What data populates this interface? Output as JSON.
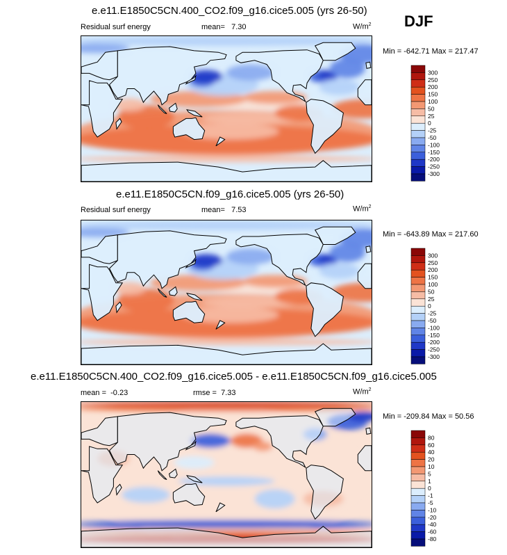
{
  "season": "DJF",
  "chart_data": [
    {
      "type": "heatmap",
      "title": "e.e11.E1850C5CN.400_CO2.f09_g16.cice5.005 (yrs 26-50)",
      "variable": "Residual surf energy",
      "mean_label": "mean=",
      "mean_value": "7.30",
      "units": "W/m",
      "units_exp": "2",
      "min_text": "Min = -642.71 Max = 217.47",
      "min": -642.71,
      "max": 217.47,
      "colorbar": {
        "levels": [
          "300",
          "250",
          "200",
          "150",
          "100",
          "50",
          "25",
          "0",
          "-25",
          "-50",
          "-100",
          "-150",
          "-200",
          "-250",
          "-300"
        ],
        "colors": [
          "#8a0707",
          "#b0160d",
          "#cf2e17",
          "#e3521f",
          "#ee7445",
          "#f39873",
          "#f6bca5",
          "#fbe3d6",
          "#dceefd",
          "#b4d1f8",
          "#89aaf0",
          "#6084e6",
          "#3b5fdb",
          "#1f38c7",
          "#0a1aa8",
          "#060e7a"
        ]
      }
    },
    {
      "type": "heatmap",
      "title": "e.e11.E1850C5CN.f09_g16.cice5.005 (yrs 26-50)",
      "variable": "Residual surf energy",
      "mean_label": "mean=",
      "mean_value": "7.53",
      "units": "W/m",
      "units_exp": "2",
      "min_text": "Min = -643.89 Max = 217.60",
      "min": -643.89,
      "max": 217.6,
      "colorbar": {
        "levels": [
          "300",
          "250",
          "200",
          "150",
          "100",
          "50",
          "25",
          "0",
          "-25",
          "-50",
          "-100",
          "-150",
          "-200",
          "-250",
          "-300"
        ],
        "colors": [
          "#8a0707",
          "#b0160d",
          "#cf2e17",
          "#e3521f",
          "#ee7445",
          "#f39873",
          "#f6bca5",
          "#fbe3d6",
          "#dceefd",
          "#b4d1f8",
          "#89aaf0",
          "#6084e6",
          "#3b5fdb",
          "#1f38c7",
          "#0a1aa8",
          "#060e7a"
        ]
      }
    },
    {
      "type": "heatmap",
      "title": "e.e11.E1850C5CN.400_CO2.f09_g16.cice5.005 - e.e11.E1850C5CN.f09_g16.cice5.005",
      "mean_label": "mean =",
      "mean_value": "-0.23",
      "rmse_label": "rmse =",
      "rmse_value": "7.33",
      "units": "W/m",
      "units_exp": "2",
      "min_text": "Min = -209.84 Max =  50.56",
      "min": -209.84,
      "max": 50.56,
      "colorbar": {
        "levels": [
          "80",
          "60",
          "40",
          "20",
          "10",
          "5",
          "1",
          "0",
          "-1",
          "-5",
          "-10",
          "-20",
          "-40",
          "-60",
          "-80"
        ],
        "colors": [
          "#8a0707",
          "#b0160d",
          "#cf2e17",
          "#e3521f",
          "#ee7445",
          "#f39873",
          "#f6bca5",
          "#fbe3d6",
          "#dceefd",
          "#b4d1f8",
          "#89aaf0",
          "#6084e6",
          "#3b5fdb",
          "#1f38c7",
          "#0a1aa8",
          "#060e7a"
        ]
      }
    }
  ]
}
